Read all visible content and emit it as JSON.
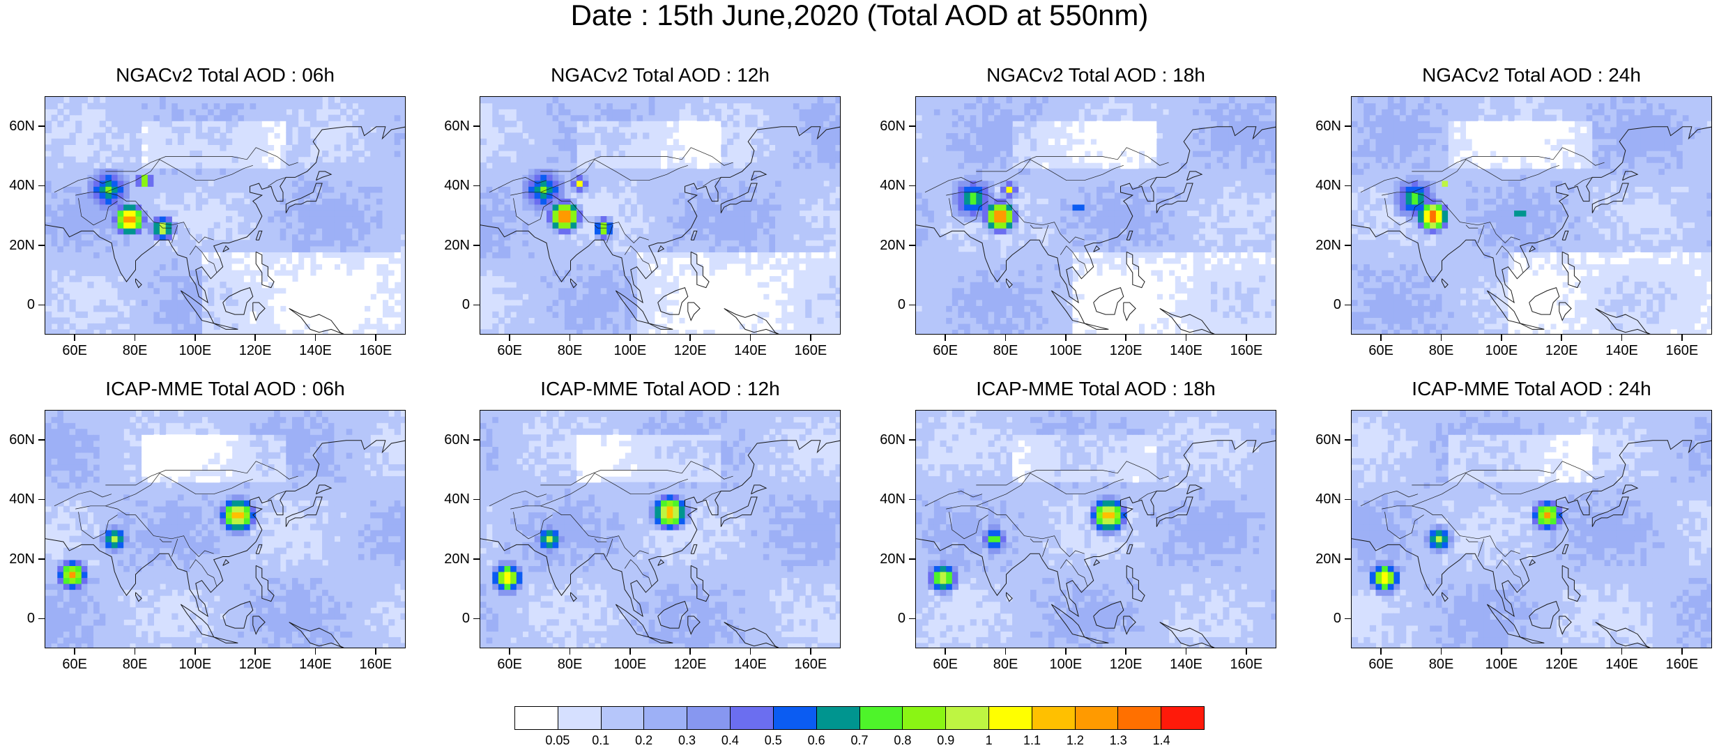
{
  "title": "Date : 15th June,2020 (Total AOD at 550nm)",
  "panels": [
    {
      "title": "NGACv2 Total AOD : 06h"
    },
    {
      "title": "NGACv2 Total AOD : 12h"
    },
    {
      "title": "NGACv2 Total AOD : 18h"
    },
    {
      "title": "NGACv2 Total AOD : 24h"
    },
    {
      "title": "ICAP-MME Total AOD : 06h"
    },
    {
      "title": "ICAP-MME Total AOD : 12h"
    },
    {
      "title": "ICAP-MME Total AOD : 18h"
    },
    {
      "title": "ICAP-MME Total AOD : 24h"
    }
  ],
  "axes": {
    "lat_labels": [
      "60N",
      "40N",
      "20N",
      "0"
    ],
    "lat_values": [
      60,
      40,
      20,
      0
    ],
    "lon_labels": [
      "60E",
      "80E",
      "100E",
      "120E",
      "140E",
      "160E"
    ],
    "lon_values": [
      60,
      80,
      100,
      120,
      140,
      160
    ],
    "lon_range": [
      50,
      170
    ],
    "lat_range": [
      -10,
      70
    ]
  },
  "colorbar": {
    "labels": [
      "0.05",
      "0.1",
      "0.2",
      "0.3",
      "0.4",
      "0.5",
      "0.6",
      "0.7",
      "0.8",
      "0.9",
      "1",
      "1.1",
      "1.2",
      "1.3",
      "1.4"
    ],
    "colors": [
      "#ffffff",
      "#d6e0ff",
      "#b6c6fa",
      "#9db0f6",
      "#8797f0",
      "#6b6ef0",
      "#0b5cf2",
      "#00958f",
      "#4ef42a",
      "#8af514",
      "#bef542",
      "#ffff00",
      "#ffc000",
      "#ff9a00",
      "#ff7000",
      "#ff1a0a"
    ]
  }
}
